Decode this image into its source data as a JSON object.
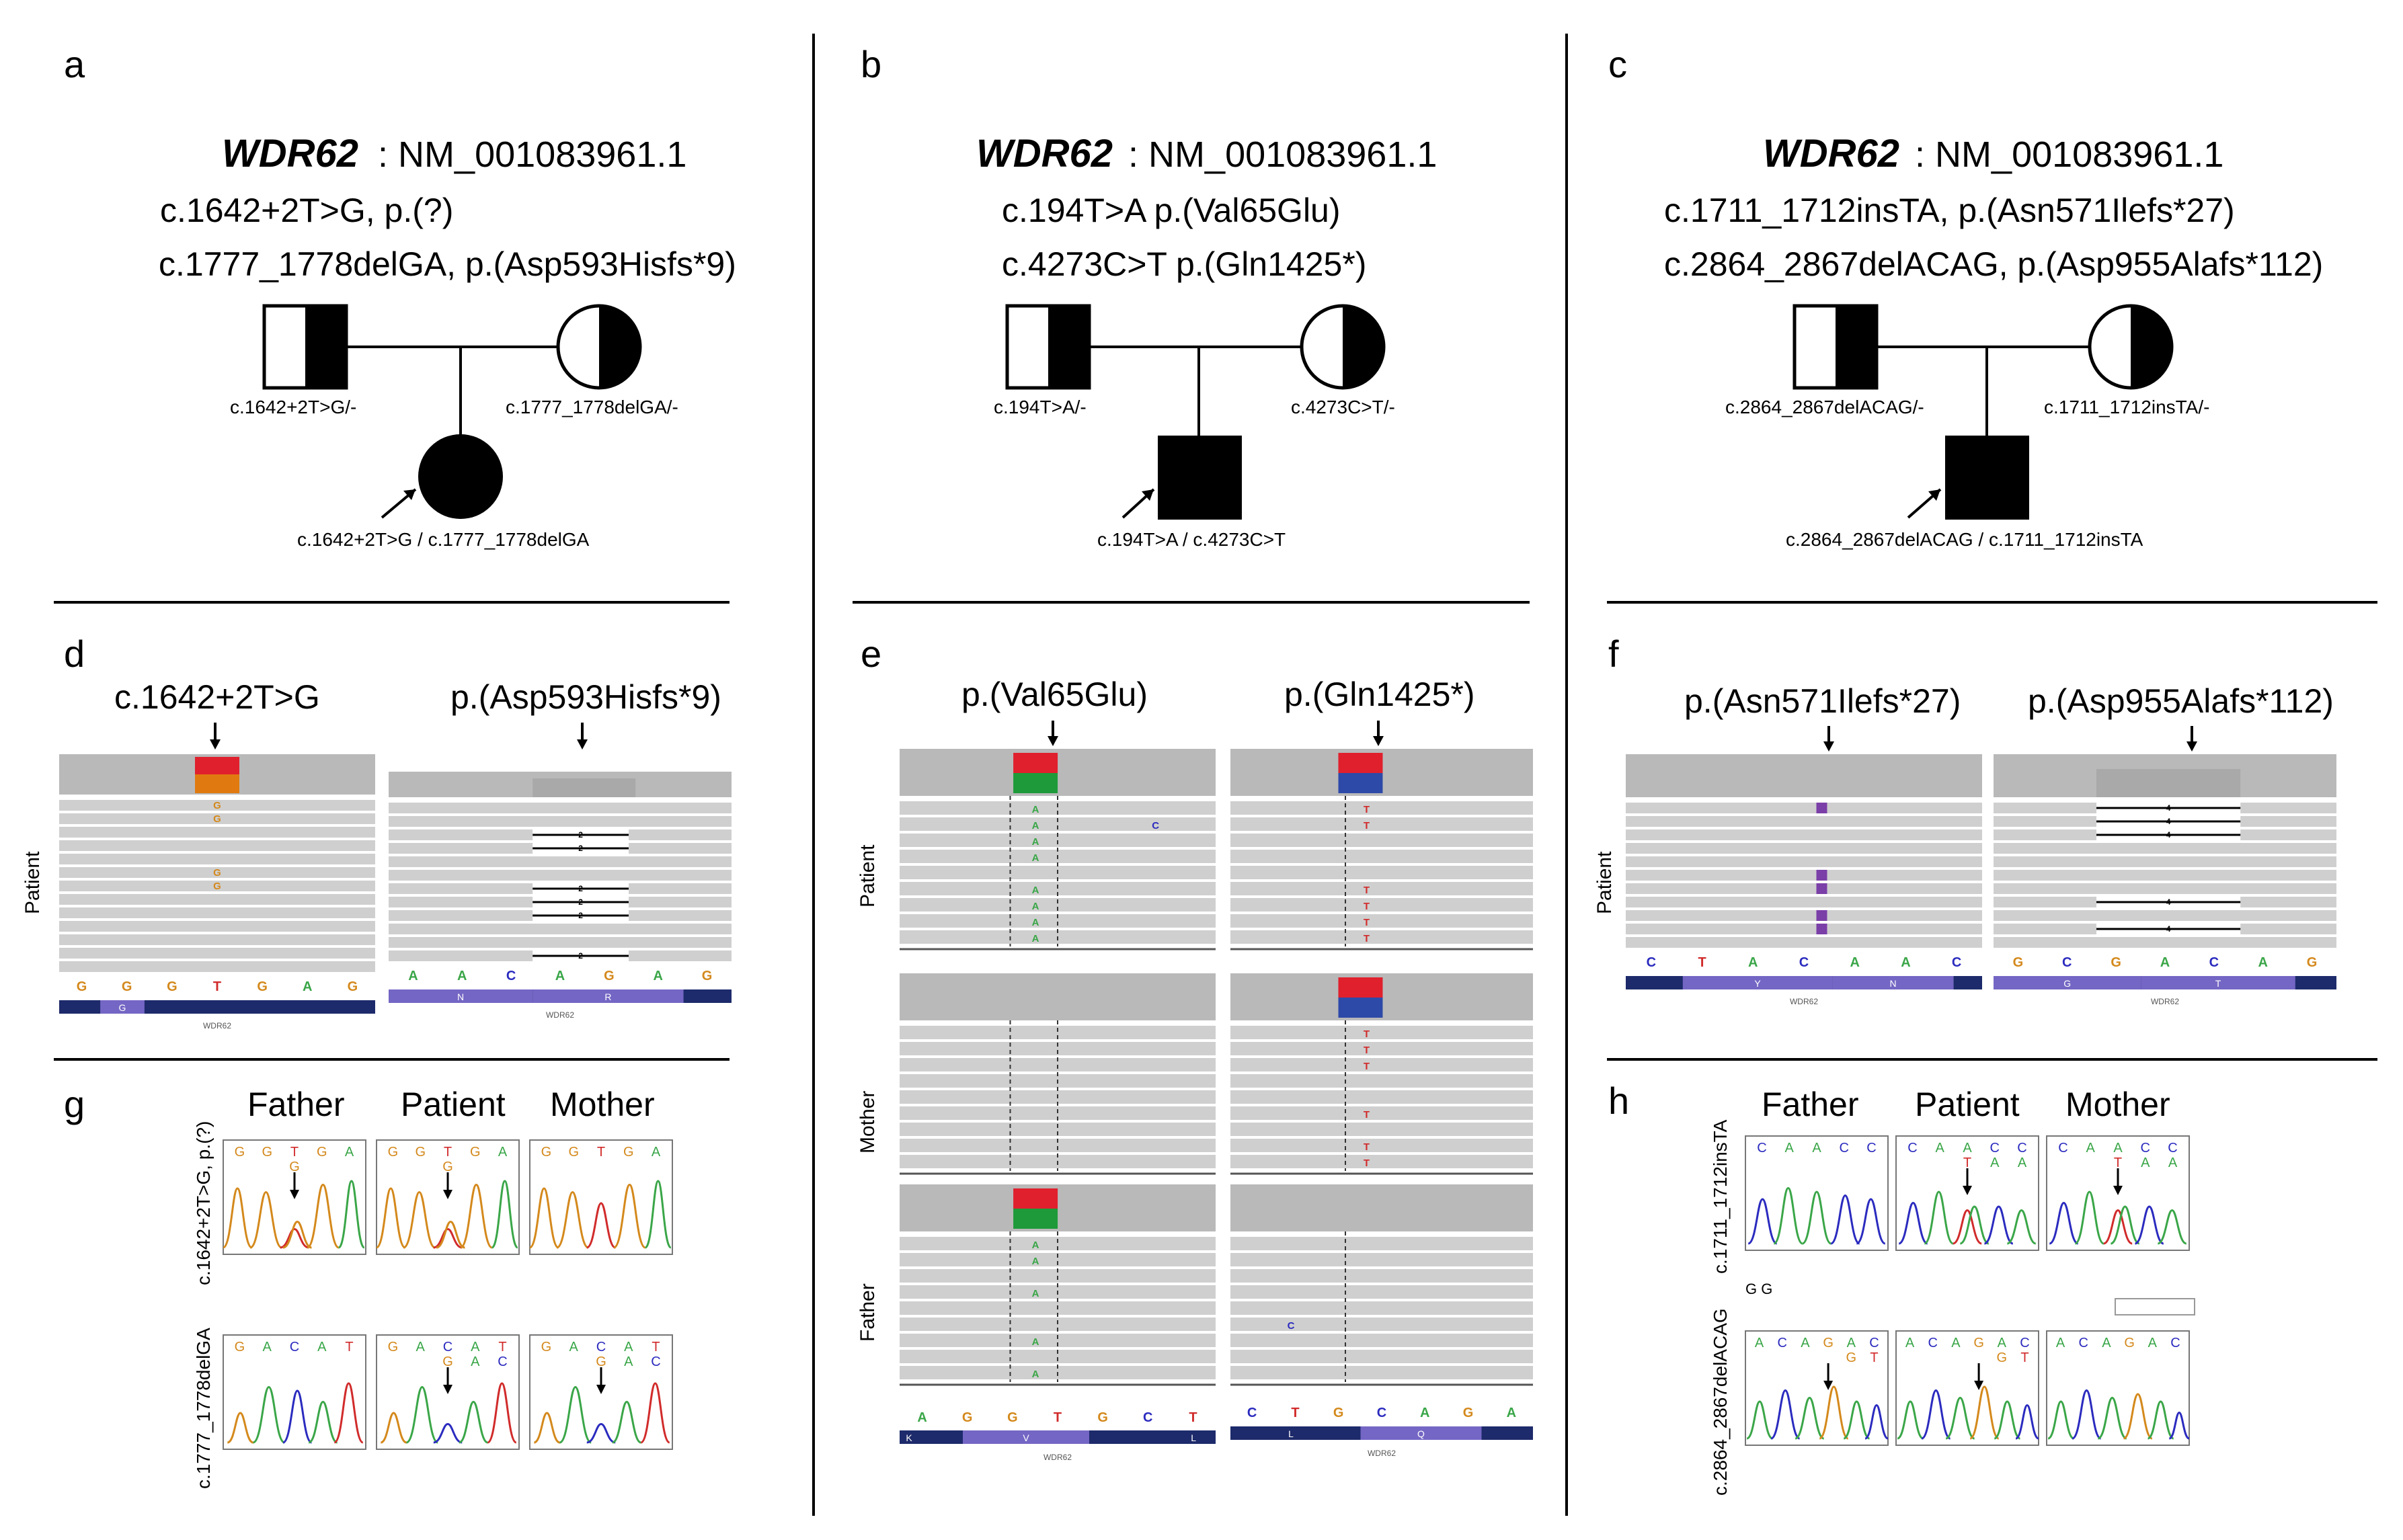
{
  "panels": {
    "a": {
      "letter": "a",
      "gene": "WDR62",
      "transcript": ": NM_001083961.1",
      "variant1": "c.1642+2T>G, p.(?)",
      "variant2": "c.1777_1778delGA, p.(Asp593Hisfs*9)",
      "father_genotype": "c.1642+2T>G/-",
      "mother_genotype": "c.1777_1778delGA/-",
      "child_genotype": "c.1642+2T>G / c.1777_1778delGA"
    },
    "b": {
      "letter": "b",
      "gene": "WDR62",
      "transcript": ": NM_001083961.1",
      "variant1": "c.194T>A p.(Val65Glu)",
      "variant2": "c.4273C>T p.(Gln1425*)",
      "father_genotype": "c.194T>A/-",
      "mother_genotype": "c.4273C>T/-",
      "child_genotype": "c.194T>A / c.4273C>T"
    },
    "c": {
      "letter": "c",
      "gene": "WDR62",
      "transcript": ": NM_001083961.1",
      "variant1": "c.1711_1712insTA, p.(Asn571Ilefs*27)",
      "variant2": "c.2864_2867delACAG, p.(Asp955Alafs*112)",
      "father_genotype": "c.2864_2867delACAG/-",
      "mother_genotype": "c.1711_1712insTA/-",
      "child_genotype": "c.2864_2867delACAG / c.1711_1712insTA"
    },
    "d": {
      "letter": "d",
      "title1": "c.1642+2T>G",
      "title2": "p.(Asp593Hisfs*9)",
      "row_label": "Patient",
      "seq1": [
        "G",
        "G",
        "G",
        "T",
        "G",
        "A",
        "G"
      ],
      "seq2": [
        "A",
        "A",
        "C",
        "A",
        "G",
        "A",
        "G"
      ],
      "aa1": [
        "G"
      ],
      "aa2": [
        "N",
        "R"
      ],
      "gene_tag": "WDR62"
    },
    "e": {
      "letter": "e",
      "title1": "p.(Val65Glu)",
      "title2": "p.(Gln1425*)",
      "row_labels": [
        "Patient",
        "Mother",
        "Father"
      ],
      "seq1": [
        "A",
        "G",
        "G",
        "T",
        "G",
        "C",
        "T"
      ],
      "seq2": [
        "C",
        "T",
        "G",
        "C",
        "A",
        "G",
        "A"
      ],
      "aa1": [
        "K",
        "V",
        "L"
      ],
      "aa2": [
        "L",
        "Q"
      ],
      "gene_tag": "WDR62"
    },
    "f": {
      "letter": "f",
      "title1": "p.(Asn571Ilefs*27)",
      "title2": "p.(Asp955Alafs*112)",
      "row_label": "Patient",
      "seq1": [
        "C",
        "T",
        "A",
        "C",
        "A",
        "A",
        "C"
      ],
      "seq2": [
        "G",
        "C",
        "G",
        "A",
        "C",
        "A",
        "G"
      ],
      "aa1": [
        "Y",
        "N"
      ],
      "aa2": [
        "G",
        "T"
      ],
      "gene_tag": "WDR62"
    },
    "g": {
      "letter": "g",
      "columns": [
        "Father",
        "Patient",
        "Mother"
      ],
      "row1_label": "c.1642+2T>G, p.(?)",
      "row2_label": "c.1777_1778delGA",
      "row1_seq": [
        "G",
        "G",
        "T",
        "G",
        "A"
      ],
      "row1_alt": "G",
      "row2_seq": [
        "G",
        "A",
        "C",
        "A",
        "T"
      ],
      "row2_alt": [
        "G",
        "A",
        "C"
      ]
    },
    "h": {
      "letter": "h",
      "columns": [
        "Father",
        "Patient",
        "Mother"
      ],
      "row1_label": "c.1711_1712insTA",
      "row2_label": "c.2864_2867delACAG",
      "row1_seq": [
        "C",
        "A",
        "A",
        "C",
        "C"
      ],
      "row1_alt": [
        "T",
        "A",
        "A"
      ],
      "row2_seq": [
        "A",
        "C",
        "A",
        "G",
        "A",
        "C"
      ],
      "row2_alt": [
        "G",
        "T"
      ],
      "stray": "G G"
    }
  },
  "colors": {
    "A": "#3aa648",
    "C": "#2b2bbf",
    "G": "#d4891c",
    "T": "#d12b2b",
    "read_gray": "#cfcfcf",
    "coverage_gray": "#b9b9b9",
    "insertion_purple": "#7b3fa8",
    "track_navy": "#1d2a6b",
    "track_purple": "#7466c4"
  }
}
